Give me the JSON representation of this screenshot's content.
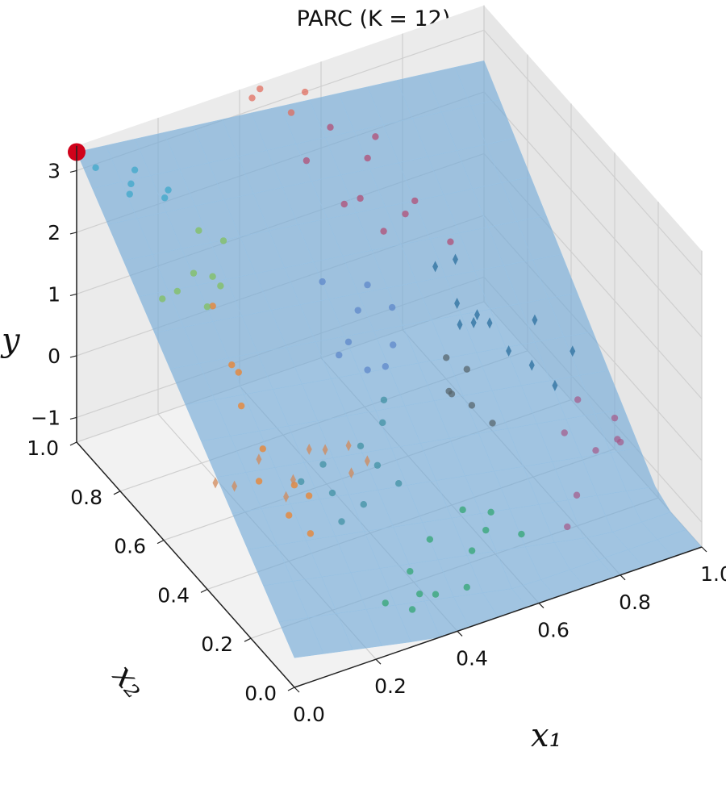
{
  "chart_data": {
    "type": "scatter",
    "subtype": "3d-surface-with-scatter",
    "title": "PARC (K = 12)",
    "xlabel": "x₁",
    "ylabel": "x₂",
    "zlabel": "y",
    "xlim": [
      0.0,
      1.0
    ],
    "ylim": [
      0.0,
      1.0
    ],
    "zlim": [
      -1.4,
      3.4
    ],
    "x_ticks": [
      "0.0",
      "0.2",
      "0.4",
      "0.6",
      "0.8",
      "1.0"
    ],
    "y_ticks": [
      "0.0",
      "0.2",
      "0.4",
      "0.6",
      "0.8",
      "1.0"
    ],
    "z_ticks": [
      "−1",
      "0",
      "1",
      "2",
      "3"
    ],
    "grid": true,
    "surface_color": "#6fa8d6",
    "best_point_color": "#d0021b",
    "best_point": {
      "x1": 0.0,
      "x2": 1.0,
      "y": 3.3
    },
    "series": [
      {
        "marker": "circle",
        "color": "#ef7f26",
        "points": [
          [
            0.05,
            0.02,
            0.9
          ],
          [
            0.04,
            0.1,
            0.9
          ],
          [
            0.08,
            0.15,
            1.1
          ],
          [
            0.02,
            0.2,
            1.1
          ],
          [
            0.04,
            0.22,
            1.5
          ],
          [
            0.03,
            0.3,
            1.9
          ],
          [
            0.05,
            0.35,
            2.2
          ],
          [
            0.04,
            0.45,
            2.9
          ],
          [
            0.06,
            0.4,
            2.1
          ],
          [
            0.1,
            0.12,
            1.0
          ]
        ]
      },
      {
        "marker": "diamond",
        "color": "#d18a5a",
        "points": [
          [
            0.3,
            0.3,
            0.2
          ],
          [
            0.35,
            0.32,
            0.2
          ],
          [
            0.32,
            0.35,
            0.4
          ],
          [
            0.3,
            0.42,
            0.1
          ],
          [
            0.25,
            0.4,
            0.3
          ],
          [
            0.2,
            0.38,
            0.0
          ],
          [
            0.22,
            0.45,
            -0.6
          ],
          [
            0.18,
            0.5,
            -0.1
          ],
          [
            0.1,
            0.55,
            -0.5
          ],
          [
            0.12,
            0.5,
            -0.4
          ]
        ]
      },
      {
        "marker": "circle",
        "color": "#7fbf5a",
        "points": [
          [
            0.08,
            0.55,
            2.4
          ],
          [
            0.12,
            0.6,
            2.6
          ],
          [
            0.15,
            0.62,
            2.3
          ],
          [
            0.1,
            0.65,
            2.5
          ],
          [
            0.05,
            0.7,
            2.0
          ],
          [
            0.06,
            0.65,
            2.3
          ],
          [
            0.2,
            0.7,
            2.6
          ],
          [
            0.15,
            0.72,
            2.8
          ]
        ]
      },
      {
        "marker": "circle",
        "color": "#3aa6c9",
        "points": [
          [
            0.12,
            0.82,
            3.0
          ],
          [
            0.08,
            0.9,
            3.0
          ],
          [
            0.05,
            0.85,
            3.1
          ],
          [
            0.02,
            0.95,
            3.2
          ],
          [
            0.15,
            0.86,
            2.9
          ],
          [
            0.1,
            0.92,
            3.1
          ]
        ]
      },
      {
        "marker": "circle",
        "color": "#3d8fa1",
        "points": [
          [
            0.2,
            0.2,
            0.5
          ],
          [
            0.25,
            0.15,
            0.4
          ],
          [
            0.22,
            0.28,
            0.6
          ],
          [
            0.3,
            0.18,
            0.8
          ],
          [
            0.28,
            0.22,
            1.0
          ],
          [
            0.35,
            0.25,
            1.1
          ],
          [
            0.32,
            0.12,
            0.7
          ],
          [
            0.18,
            0.12,
            0.4
          ],
          [
            0.15,
            0.25,
            0.6
          ],
          [
            0.38,
            0.3,
            1.2
          ]
        ]
      },
      {
        "marker": "circle",
        "color": "#5b85c9",
        "points": [
          [
            0.35,
            0.45,
            1.4
          ],
          [
            0.4,
            0.5,
            1.3
          ],
          [
            0.42,
            0.45,
            1.0
          ],
          [
            0.45,
            0.55,
            1.5
          ],
          [
            0.48,
            0.48,
            0.8
          ],
          [
            0.5,
            0.6,
            1.6
          ],
          [
            0.52,
            0.52,
            0.9
          ],
          [
            0.55,
            0.58,
            1.2
          ],
          [
            0.4,
            0.62,
            1.8
          ]
        ]
      },
      {
        "marker": "circle",
        "color": "#2ea36f",
        "points": [
          [
            0.25,
            0.05,
            -0.8
          ],
          [
            0.3,
            0.02,
            -0.9
          ],
          [
            0.35,
            0.08,
            -1.0
          ],
          [
            0.4,
            0.1,
            -1.2
          ],
          [
            0.45,
            0.05,
            -1.0
          ],
          [
            0.5,
            0.12,
            -0.8
          ],
          [
            0.55,
            0.15,
            -0.7
          ],
          [
            0.6,
            0.08,
            -0.6
          ],
          [
            0.52,
            0.2,
            -0.5
          ],
          [
            0.45,
            0.22,
            -0.9
          ],
          [
            0.6,
            0.22,
            -0.8
          ],
          [
            0.38,
            0.18,
            -1.1
          ]
        ]
      },
      {
        "marker": "diamond",
        "color": "#2b6f9e",
        "points": [
          [
            0.7,
            0.55,
            0.7
          ],
          [
            0.72,
            0.6,
            0.8
          ],
          [
            0.75,
            0.58,
            0.5
          ],
          [
            0.78,
            0.62,
            0.4
          ],
          [
            0.8,
            0.6,
            0.3
          ],
          [
            0.82,
            0.55,
            0.0
          ],
          [
            0.85,
            0.5,
            -0.1
          ],
          [
            0.9,
            0.58,
            0.2
          ],
          [
            0.88,
            0.45,
            -0.3
          ],
          [
            0.95,
            0.5,
            -0.1
          ],
          [
            0.72,
            0.7,
            1.0
          ],
          [
            0.78,
            0.72,
            0.9
          ]
        ]
      },
      {
        "marker": "circle",
        "color": "#b24a72",
        "points": [
          [
            0.55,
            0.8,
            2.0
          ],
          [
            0.6,
            0.82,
            1.9
          ],
          [
            0.65,
            0.88,
            2.2
          ],
          [
            0.62,
            0.75,
            1.6
          ],
          [
            0.7,
            0.8,
            1.5
          ],
          [
            0.68,
            0.9,
            2.4
          ],
          [
            0.58,
            0.92,
            2.7
          ],
          [
            0.5,
            0.88,
            2.5
          ],
          [
            0.75,
            0.85,
            1.4
          ],
          [
            0.8,
            0.78,
            0.9
          ]
        ]
      },
      {
        "marker": "circle",
        "color": "#e06a5a",
        "points": [
          [
            0.42,
            0.98,
            3.3
          ],
          [
            0.45,
            1.0,
            3.3
          ],
          [
            0.5,
            0.95,
            3.0
          ],
          [
            0.55,
            0.98,
            3.1
          ]
        ]
      },
      {
        "marker": "circle",
        "color": "#a35a8a",
        "points": [
          [
            0.85,
            0.35,
            -0.6
          ],
          [
            0.9,
            0.3,
            -0.8
          ],
          [
            0.95,
            0.28,
            -0.7
          ],
          [
            1.0,
            0.4,
            -0.9
          ],
          [
            0.98,
            0.35,
            -1.0
          ],
          [
            0.92,
            0.42,
            -0.5
          ],
          [
            0.8,
            0.2,
            -0.9
          ],
          [
            0.75,
            0.15,
            -1.1
          ]
        ]
      },
      {
        "marker": "circle",
        "color": "#54626a",
        "points": [
          [
            0.6,
            0.4,
            0.4
          ],
          [
            0.62,
            0.45,
            0.2
          ],
          [
            0.66,
            0.42,
            0.0
          ],
          [
            0.7,
            0.4,
            -0.3
          ],
          [
            0.68,
            0.48,
            0.3
          ],
          [
            0.64,
            0.5,
            0.5
          ]
        ]
      }
    ]
  }
}
